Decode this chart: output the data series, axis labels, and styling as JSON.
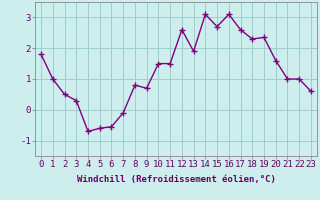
{
  "x": [
    0,
    1,
    2,
    3,
    4,
    5,
    6,
    7,
    8,
    9,
    10,
    11,
    12,
    13,
    14,
    15,
    16,
    17,
    18,
    19,
    20,
    21,
    22,
    23
  ],
  "y": [
    1.8,
    1.0,
    0.5,
    0.3,
    -0.7,
    -0.6,
    -0.55,
    -0.1,
    0.8,
    0.7,
    1.5,
    1.5,
    2.6,
    1.9,
    3.1,
    2.7,
    3.1,
    2.6,
    2.3,
    2.35,
    1.6,
    1.0,
    1.0,
    0.6
  ],
  "line_color": "#800080",
  "marker": "+",
  "bg_color": "#ceeeed",
  "grid_color": "#9ecece",
  "xlabel": "Windchill (Refroidissement éolien,°C)",
  "xlim": [
    -0.5,
    23.5
  ],
  "ylim": [
    -1.5,
    3.5
  ],
  "yticks": [
    -1,
    0,
    1,
    2,
    3
  ],
  "xticks": [
    0,
    1,
    2,
    3,
    4,
    5,
    6,
    7,
    8,
    9,
    10,
    11,
    12,
    13,
    14,
    15,
    16,
    17,
    18,
    19,
    20,
    21,
    22,
    23
  ],
  "xlabel_fontsize": 6.5,
  "tick_fontsize": 6.5,
  "marker_size": 4,
  "line_width": 1.0
}
